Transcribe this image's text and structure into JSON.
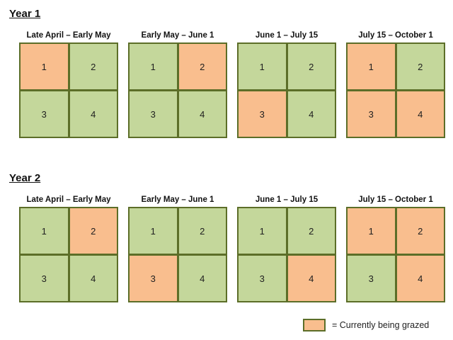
{
  "colors": {
    "grazed": "#F9BE8E",
    "rested": "#C4D79B",
    "border": "#5C6E28",
    "text": "#1f1f1f"
  },
  "legend": {
    "label": "= Currently being grazed"
  },
  "years": [
    {
      "label": "Year 1",
      "periods": [
        {
          "title": "Late April – Early May",
          "cells": [
            {
              "number": "1",
              "state": "grazed"
            },
            {
              "number": "2",
              "state": "rested"
            },
            {
              "number": "3",
              "state": "rested"
            },
            {
              "number": "4",
              "state": "rested"
            }
          ]
        },
        {
          "title": "Early May – June 1",
          "cells": [
            {
              "number": "1",
              "state": "rested"
            },
            {
              "number": "2",
              "state": "grazed"
            },
            {
              "number": "3",
              "state": "rested"
            },
            {
              "number": "4",
              "state": "rested"
            }
          ]
        },
        {
          "title": "June 1 – July 15",
          "cells": [
            {
              "number": "1",
              "state": "rested"
            },
            {
              "number": "2",
              "state": "rested"
            },
            {
              "number": "3",
              "state": "grazed"
            },
            {
              "number": "4",
              "state": "rested"
            }
          ]
        },
        {
          "title": "July 15 – October 1",
          "cells": [
            {
              "number": "1",
              "state": "grazed"
            },
            {
              "number": "2",
              "state": "rested"
            },
            {
              "number": "3",
              "state": "grazed"
            },
            {
              "number": "4",
              "state": "grazed"
            }
          ]
        }
      ]
    },
    {
      "label": "Year 2",
      "periods": [
        {
          "title": "Late April – Early May",
          "cells": [
            {
              "number": "1",
              "state": "rested"
            },
            {
              "number": "2",
              "state": "grazed"
            },
            {
              "number": "3",
              "state": "rested"
            },
            {
              "number": "4",
              "state": "rested"
            }
          ]
        },
        {
          "title": "Early May – June 1",
          "cells": [
            {
              "number": "1",
              "state": "rested"
            },
            {
              "number": "2",
              "state": "rested"
            },
            {
              "number": "3",
              "state": "grazed"
            },
            {
              "number": "4",
              "state": "rested"
            }
          ]
        },
        {
          "title": "June 1 – July 15",
          "cells": [
            {
              "number": "1",
              "state": "rested"
            },
            {
              "number": "2",
              "state": "rested"
            },
            {
              "number": "3",
              "state": "rested"
            },
            {
              "number": "4",
              "state": "grazed"
            }
          ]
        },
        {
          "title": "July 15 – October 1",
          "cells": [
            {
              "number": "1",
              "state": "grazed"
            },
            {
              "number": "2",
              "state": "grazed"
            },
            {
              "number": "3",
              "state": "rested"
            },
            {
              "number": "4",
              "state": "grazed"
            }
          ]
        }
      ]
    }
  ]
}
